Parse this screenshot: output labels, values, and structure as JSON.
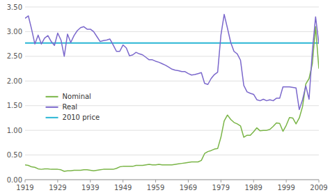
{
  "chart_data": {
    "type": "line",
    "x": [
      1919,
      1920,
      1921,
      1922,
      1923,
      1924,
      1925,
      1926,
      1927,
      1928,
      1929,
      1930,
      1931,
      1932,
      1933,
      1934,
      1935,
      1936,
      1937,
      1938,
      1939,
      1940,
      1941,
      1942,
      1943,
      1944,
      1945,
      1946,
      1947,
      1948,
      1949,
      1950,
      1951,
      1952,
      1953,
      1954,
      1955,
      1956,
      1957,
      1958,
      1959,
      1960,
      1961,
      1962,
      1963,
      1964,
      1965,
      1966,
      1967,
      1968,
      1969,
      1970,
      1971,
      1972,
      1973,
      1974,
      1975,
      1976,
      1977,
      1978,
      1979,
      1980,
      1981,
      1982,
      1983,
      1984,
      1985,
      1986,
      1987,
      1988,
      1989,
      1990,
      1991,
      1992,
      1993,
      1994,
      1995,
      1996,
      1997,
      1998,
      1999,
      2000,
      2001,
      2002,
      2003,
      2004,
      2005,
      2006,
      2007,
      2008,
      2009
    ],
    "series": [
      {
        "name": "Nominal",
        "color": "#7ab547",
        "values": [
          0.3,
          0.29,
          0.26,
          0.25,
          0.22,
          0.21,
          0.22,
          0.22,
          0.21,
          0.21,
          0.21,
          0.2,
          0.17,
          0.18,
          0.18,
          0.19,
          0.19,
          0.19,
          0.2,
          0.2,
          0.19,
          0.18,
          0.19,
          0.2,
          0.21,
          0.21,
          0.21,
          0.21,
          0.23,
          0.26,
          0.27,
          0.27,
          0.27,
          0.27,
          0.29,
          0.29,
          0.29,
          0.3,
          0.31,
          0.3,
          0.3,
          0.31,
          0.3,
          0.3,
          0.3,
          0.3,
          0.31,
          0.32,
          0.33,
          0.34,
          0.35,
          0.36,
          0.36,
          0.36,
          0.39,
          0.53,
          0.57,
          0.59,
          0.62,
          0.63,
          0.86,
          1.19,
          1.31,
          1.22,
          1.16,
          1.13,
          1.09,
          0.86,
          0.9,
          0.9,
          0.97,
          1.05,
          0.99,
          1.0,
          1.0,
          1.02,
          1.08,
          1.15,
          1.14,
          0.98,
          1.1,
          1.26,
          1.25,
          1.13,
          1.25,
          1.48,
          1.94,
          2.05,
          2.35,
          3.1,
          2.25
        ]
      },
      {
        "name": "Real",
        "color": "#7b68cc",
        "values": [
          3.27,
          3.32,
          3.05,
          2.75,
          2.93,
          2.75,
          2.87,
          2.92,
          2.8,
          2.72,
          2.97,
          2.83,
          2.5,
          2.95,
          2.78,
          2.92,
          3.02,
          3.08,
          3.1,
          3.05,
          3.05,
          3.0,
          2.9,
          2.8,
          2.82,
          2.83,
          2.85,
          2.73,
          2.6,
          2.6,
          2.73,
          2.67,
          2.51,
          2.53,
          2.58,
          2.55,
          2.53,
          2.48,
          2.43,
          2.43,
          2.4,
          2.38,
          2.35,
          2.32,
          2.28,
          2.24,
          2.22,
          2.21,
          2.19,
          2.19,
          2.15,
          2.12,
          2.13,
          2.15,
          2.17,
          1.95,
          1.93,
          2.05,
          2.13,
          2.18,
          2.93,
          3.35,
          3.07,
          2.78,
          2.6,
          2.55,
          2.42,
          1.91,
          1.78,
          1.75,
          1.73,
          1.62,
          1.6,
          1.63,
          1.6,
          1.62,
          1.6,
          1.65,
          1.65,
          1.88,
          1.88,
          1.88,
          1.87,
          1.86,
          1.42,
          1.62,
          1.9,
          1.63,
          2.6,
          3.3,
          2.75
        ]
      }
    ],
    "reference_line": {
      "name": "2010 price",
      "value": 2.77,
      "color": "#29b6d4"
    },
    "xlim": [
      1919,
      2009
    ],
    "xticks": [
      1919,
      1929,
      1939,
      1949,
      1959,
      1969,
      1979,
      1989,
      1999,
      2009
    ],
    "ylim": [
      0.0,
      3.5
    ],
    "yticks": [
      {
        "value": 0.0,
        "label": "0.00"
      },
      {
        "value": 0.5,
        "label": "0.50"
      },
      {
        "value": 1.0,
        "label": "1.00"
      },
      {
        "value": 1.5,
        "label": "1.50"
      },
      {
        "value": 2.0,
        "label": "2.00"
      },
      {
        "value": 2.5,
        "label": "2.50"
      },
      {
        "value": 3.0,
        "label": "3.00"
      },
      {
        "value": 3.5,
        "label": "3.50"
      }
    ],
    "grid": true,
    "legend": "left"
  }
}
